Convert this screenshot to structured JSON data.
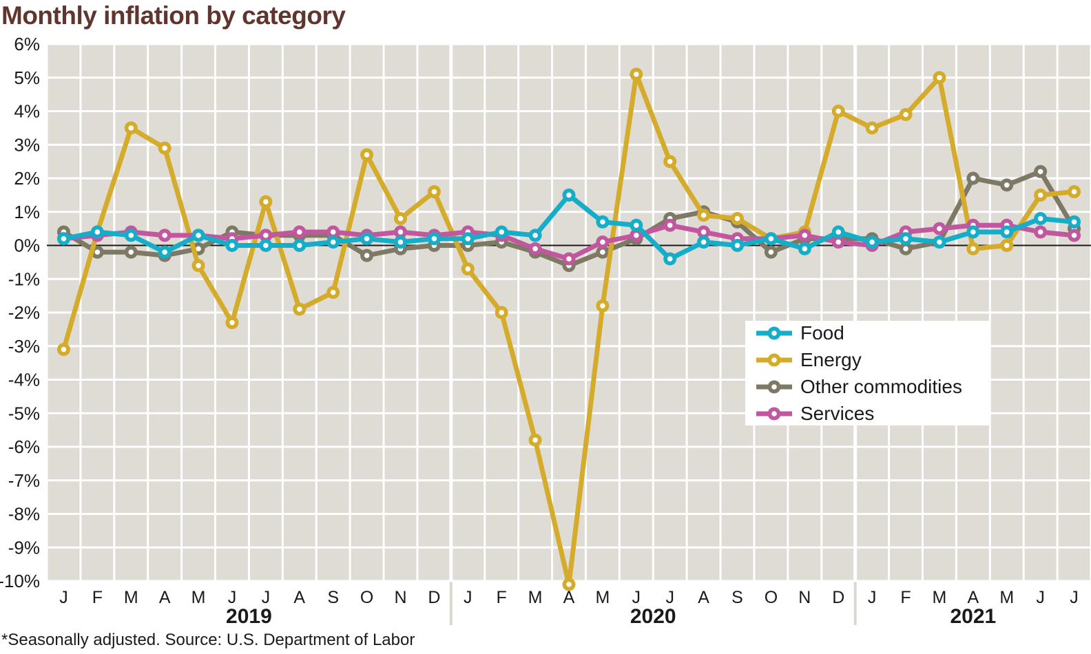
{
  "page": {
    "title": "Monthly inflation by category",
    "footnote": "*Seasonally adjusted. Source: U.S. Department of Labor"
  },
  "colors": {
    "title_text": "#5f352e",
    "axis_text": "#1a1a1a",
    "plot_background": "#dedcd4",
    "gridline": "#ffffff",
    "zero_line": "#1a1a1a",
    "year_separator": "#d9d7cf",
    "legend_background": "#ffffff"
  },
  "chart_data": {
    "type": "line",
    "title": "Monthly inflation by category",
    "xlabel": "",
    "ylabel": "",
    "ylim": [
      -10,
      6
    ],
    "grid": true,
    "legend_position": "middle-right",
    "y_tick_labels": [
      "6%",
      "5%",
      "4%",
      "3%",
      "2%",
      "1%",
      "0%",
      "-1%",
      "-2%",
      "-3%",
      "-4%",
      "-5%",
      "-6%",
      "-7%",
      "-8%",
      "-9%",
      "-10%"
    ],
    "x_month_labels": [
      "J",
      "F",
      "M",
      "A",
      "M",
      "J",
      "J",
      "A",
      "S",
      "O",
      "N",
      "D",
      "J",
      "F",
      "M",
      "A",
      "M",
      "J",
      "J",
      "A",
      "S",
      "O",
      "N",
      "D",
      "J",
      "F",
      "M",
      "A",
      "M",
      "J",
      "J"
    ],
    "years": [
      {
        "label": "2019",
        "start_index": 0,
        "end_index": 11
      },
      {
        "label": "2020",
        "start_index": 12,
        "end_index": 23
      },
      {
        "label": "2021",
        "start_index": 24,
        "end_index": 30
      }
    ],
    "series": [
      {
        "name": "Food",
        "color": "#16adc9",
        "values": [
          0.2,
          0.4,
          0.3,
          -0.2,
          0.3,
          0.0,
          0.0,
          0.0,
          0.1,
          0.2,
          0.1,
          0.2,
          0.2,
          0.4,
          0.3,
          1.5,
          0.7,
          0.6,
          -0.4,
          0.1,
          0.0,
          0.2,
          -0.1,
          0.4,
          0.1,
          0.2,
          0.1,
          0.4,
          0.4,
          0.8,
          0.7
        ]
      },
      {
        "name": "Energy",
        "color": "#d4ab2a",
        "values": [
          -3.1,
          0.4,
          3.5,
          2.9,
          -0.6,
          -2.3,
          1.3,
          -1.9,
          -1.4,
          2.7,
          0.8,
          1.6,
          -0.7,
          -2.0,
          -5.8,
          -10.1,
          -1.8,
          5.1,
          2.5,
          0.9,
          0.8,
          0.2,
          0.4,
          4.0,
          3.5,
          3.9,
          5.0,
          -0.1,
          0.0,
          1.5,
          1.6
        ]
      },
      {
        "name": "Other commodities",
        "color": "#7e7965",
        "values": [
          0.4,
          -0.2,
          -0.2,
          -0.3,
          -0.1,
          0.4,
          0.3,
          0.3,
          0.3,
          -0.3,
          -0.1,
          0.0,
          0.0,
          0.1,
          -0.2,
          -0.6,
          -0.2,
          0.2,
          0.8,
          1.0,
          0.7,
          -0.2,
          0.2,
          0.2,
          0.2,
          -0.1,
          0.1,
          2.0,
          1.8,
          2.2,
          0.5
        ]
      },
      {
        "name": "Services",
        "color": "#c0579f",
        "values": [
          0.2,
          0.3,
          0.4,
          0.3,
          0.3,
          0.2,
          0.3,
          0.4,
          0.4,
          0.3,
          0.4,
          0.3,
          0.4,
          0.3,
          -0.1,
          -0.4,
          0.1,
          0.3,
          0.6,
          0.4,
          0.2,
          0.2,
          0.3,
          0.1,
          0.0,
          0.4,
          0.5,
          0.6,
          0.6,
          0.4,
          0.3
        ]
      }
    ]
  }
}
